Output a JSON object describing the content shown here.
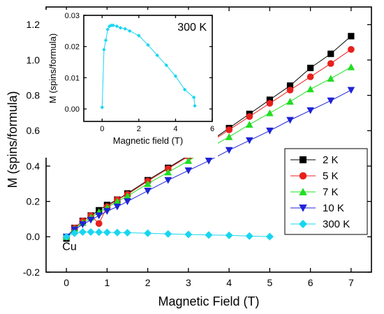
{
  "chart_data": [
    {
      "type": "line",
      "role": "main",
      "xlabel": "Magnetic Field (T)",
      "ylabel": "M (spins/formula)",
      "xlim": [
        -0.5,
        7.5
      ],
      "ylim": [
        -0.2,
        1.3
      ],
      "xticks": [
        0,
        1,
        2,
        3,
        4,
        5,
        6,
        7
      ],
      "yticks": [
        -0.2,
        0.0,
        0.2,
        0.4,
        0.6,
        0.8,
        1.0,
        1.2
      ],
      "annotation": "Cu",
      "legend_position": "right",
      "grid": false,
      "series": [
        {
          "name": "2 K",
          "color": "#000000",
          "marker": "square",
          "x": [
            0,
            0.2,
            0.4,
            0.6,
            0.8,
            1.0,
            1.25,
            1.5,
            2.0,
            2.5,
            3.0,
            3.5,
            4.0,
            4.5,
            5.0,
            5.5,
            6.0,
            6.5,
            7.0
          ],
          "y": [
            -0.01,
            0.05,
            0.09,
            0.12,
            0.15,
            0.18,
            0.21,
            0.245,
            0.32,
            0.39,
            0.46,
            0.535,
            0.615,
            0.695,
            0.775,
            0.855,
            0.955,
            1.035,
            1.135
          ]
        },
        {
          "name": "5 K",
          "color": "#e8201c",
          "marker": "circle",
          "x": [
            0,
            0.2,
            0.4,
            0.6,
            0.8,
            1.0,
            1.25,
            1.5,
            2.0,
            2.5,
            3.0,
            3.5,
            4.0,
            4.5,
            5.0,
            5.5,
            6.0,
            6.5,
            7.0
          ],
          "y": [
            0.0,
            0.05,
            0.09,
            0.12,
            0.075,
            0.17,
            0.21,
            0.24,
            0.315,
            0.385,
            0.455,
            0.53,
            0.605,
            0.68,
            0.755,
            0.83,
            0.905,
            0.98,
            1.06
          ]
        },
        {
          "name": "7 K",
          "color": "#22dd22",
          "marker": "triangle-up",
          "x": [
            0,
            0.2,
            0.4,
            0.6,
            0.8,
            1.0,
            1.25,
            1.5,
            2.0,
            2.5,
            3.0,
            3.5,
            4.0,
            4.5,
            5.0,
            5.5,
            6.0,
            6.5,
            7.0
          ],
          "y": [
            0.0,
            0.045,
            0.08,
            0.11,
            0.14,
            0.165,
            0.2,
            0.23,
            0.3,
            0.365,
            0.43,
            0.5,
            0.565,
            0.635,
            0.7,
            0.765,
            0.835,
            0.895,
            0.96
          ]
        },
        {
          "name": "10 K",
          "color": "#1f23d6",
          "marker": "triangle-down",
          "x": [
            0,
            0.2,
            0.4,
            0.6,
            0.8,
            1.0,
            1.25,
            1.5,
            2.0,
            2.5,
            3.0,
            3.5,
            4.0,
            4.5,
            5.0,
            5.5,
            6.0,
            6.5,
            7.0
          ],
          "y": [
            0.0,
            0.04,
            0.07,
            0.095,
            0.12,
            0.145,
            0.17,
            0.2,
            0.26,
            0.32,
            0.375,
            0.43,
            0.49,
            0.545,
            0.6,
            0.66,
            0.715,
            0.77,
            0.83
          ]
        },
        {
          "name": "300 K",
          "color": "#18d6f0",
          "marker": "diamond",
          "x": [
            0,
            0.2,
            0.4,
            0.6,
            0.8,
            1.0,
            1.25,
            1.5,
            2.0,
            2.5,
            3.0,
            3.5,
            4.0,
            4.5,
            5.0
          ],
          "y": [
            0.0,
            0.02,
            0.027,
            0.027,
            0.026,
            0.025,
            0.024,
            0.023,
            0.02,
            0.016,
            0.013,
            0.01,
            0.008,
            0.004,
            0.001
          ]
        }
      ]
    },
    {
      "type": "line",
      "role": "inset",
      "xlabel": "Magnetic field (T)",
      "ylabel": "M (spins/formula)",
      "xlim": [
        -1,
        6
      ],
      "ylim": [
        -0.004,
        0.03
      ],
      "xticks": [
        0,
        2,
        4,
        6
      ],
      "yticks": [
        0.0,
        0.01,
        0.02,
        0.03
      ],
      "ytick_labels": [
        "0.00",
        "0.01",
        "0.02",
        "0.03"
      ],
      "annotation": "300 K",
      "series": [
        {
          "color": "#18d6f0",
          "marker": "diamond",
          "x": [
            0,
            0.1,
            0.2,
            0.3,
            0.4,
            0.5,
            0.6,
            0.8,
            1.0,
            1.25,
            1.5,
            2.0,
            2.5,
            3.0,
            3.5,
            4.0,
            4.5,
            5.0,
            5.05
          ],
          "y": [
            0.0005,
            0.019,
            0.022,
            0.0255,
            0.0265,
            0.0268,
            0.0268,
            0.0265,
            0.026,
            0.0257,
            0.025,
            0.0235,
            0.0205,
            0.0172,
            0.014,
            0.0105,
            0.0062,
            0.0037,
            0.001
          ]
        }
      ]
    }
  ]
}
